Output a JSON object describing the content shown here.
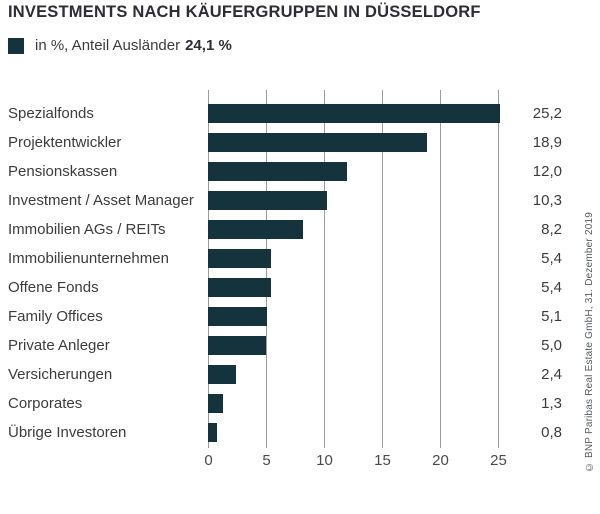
{
  "header": {
    "title": "INVESTMENTS NACH KÄUFERGRUPPEN IN DÜSSELDORF"
  },
  "legend": {
    "label": "in %, Anteil Ausländer",
    "bold_value": "24,1 %",
    "swatch_color": "#14333D"
  },
  "chart_data": {
    "type": "bar",
    "orientation": "horizontal",
    "title": "Investments nach Käufergruppen in Düsseldorf",
    "unit": "%",
    "categories": [
      "Spezialfonds",
      "Projektentwickler",
      "Pensionskassen",
      "Investment / Asset Manager",
      "Immobilien AGs / REITs",
      "Immobilienunternehmen",
      "Offene Fonds",
      "Family Offices",
      "Private Anleger",
      "Versicherungen",
      "Corporates",
      "Übrige Investoren"
    ],
    "values": [
      25.2,
      18.9,
      12.0,
      10.3,
      8.2,
      5.4,
      5.4,
      5.1,
      5.0,
      2.4,
      1.3,
      0.8
    ],
    "value_labels": [
      "25,2",
      "18,9",
      "12,0",
      "10,3",
      "8,2",
      "5,4",
      "5,4",
      "5,1",
      "5,0",
      "2,4",
      "1,3",
      "0,8"
    ],
    "xticks": [
      0,
      5,
      10,
      15,
      20,
      25
    ],
    "xtick_labels": [
      "0",
      "5",
      "10",
      "15",
      "20",
      "25"
    ],
    "xlim": [
      0,
      25
    ],
    "bar_color": "#14333D",
    "gridline_color": "#9b9b9b",
    "grid": true,
    "legend_position": "top-left"
  },
  "footer": {
    "copyright": "© BNP Paribas Real Estate GmbH, 31. Dezember 2019"
  }
}
